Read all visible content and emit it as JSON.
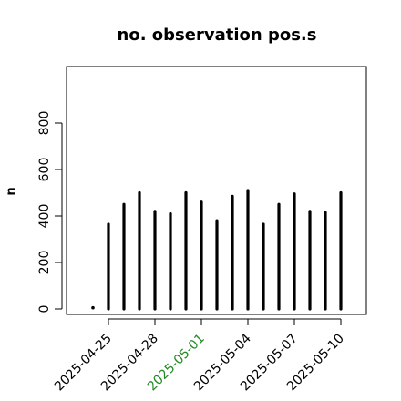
{
  "chart_data": {
    "type": "bar",
    "title": "no. observation pos.s",
    "xlabel": "",
    "ylabel": "n",
    "ylim": [
      -20,
      1020
    ],
    "y_ticks": [
      0,
      200,
      400,
      600,
      800
    ],
    "x_tick_labels": [
      "2025-04-25",
      "2025-04-28",
      "2025-05-01",
      "2025-05-04",
      "2025-05-07",
      "2025-05-10"
    ],
    "x_tick_colors": [
      "#000000",
      "#000000",
      "#228B22",
      "#000000",
      "#000000",
      "#000000"
    ],
    "grid": false,
    "x": [
      "2025-04-24",
      "2025-04-25",
      "2025-04-26",
      "2025-04-27",
      "2025-04-28",
      "2025-04-29",
      "2025-04-30",
      "2025-05-01",
      "2025-05-02",
      "2025-05-03",
      "2025-05-04",
      "2025-05-05",
      "2025-05-06",
      "2025-05-07",
      "2025-05-08",
      "2025-05-09",
      "2025-05-10"
    ],
    "values": [
      5,
      365,
      450,
      500,
      420,
      410,
      500,
      460,
      380,
      485,
      510,
      365,
      450,
      495,
      420,
      415,
      500
    ]
  }
}
